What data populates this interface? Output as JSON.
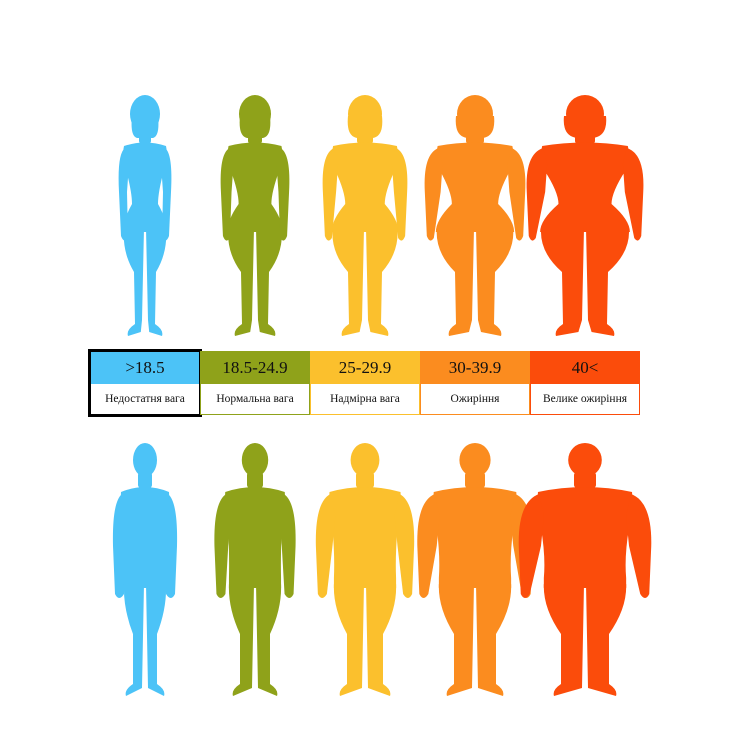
{
  "categories": [
    {
      "range": ">18.5",
      "label": "Недостатня вага",
      "color": "#4cc3f7"
    },
    {
      "range": "18.5-24.9",
      "label": "Нормальна вага",
      "color": "#8fa21a"
    },
    {
      "range": "25-29.9",
      "label": "Надмірна вага",
      "color": "#fbc02d"
    },
    {
      "range": "30-39.9",
      "label": "Ожиріння",
      "color": "#fb8c1f"
    },
    {
      "range": "40<",
      "label": "Велике ожиріння",
      "color": "#fb4c0b"
    }
  ],
  "selected_index": 0
}
